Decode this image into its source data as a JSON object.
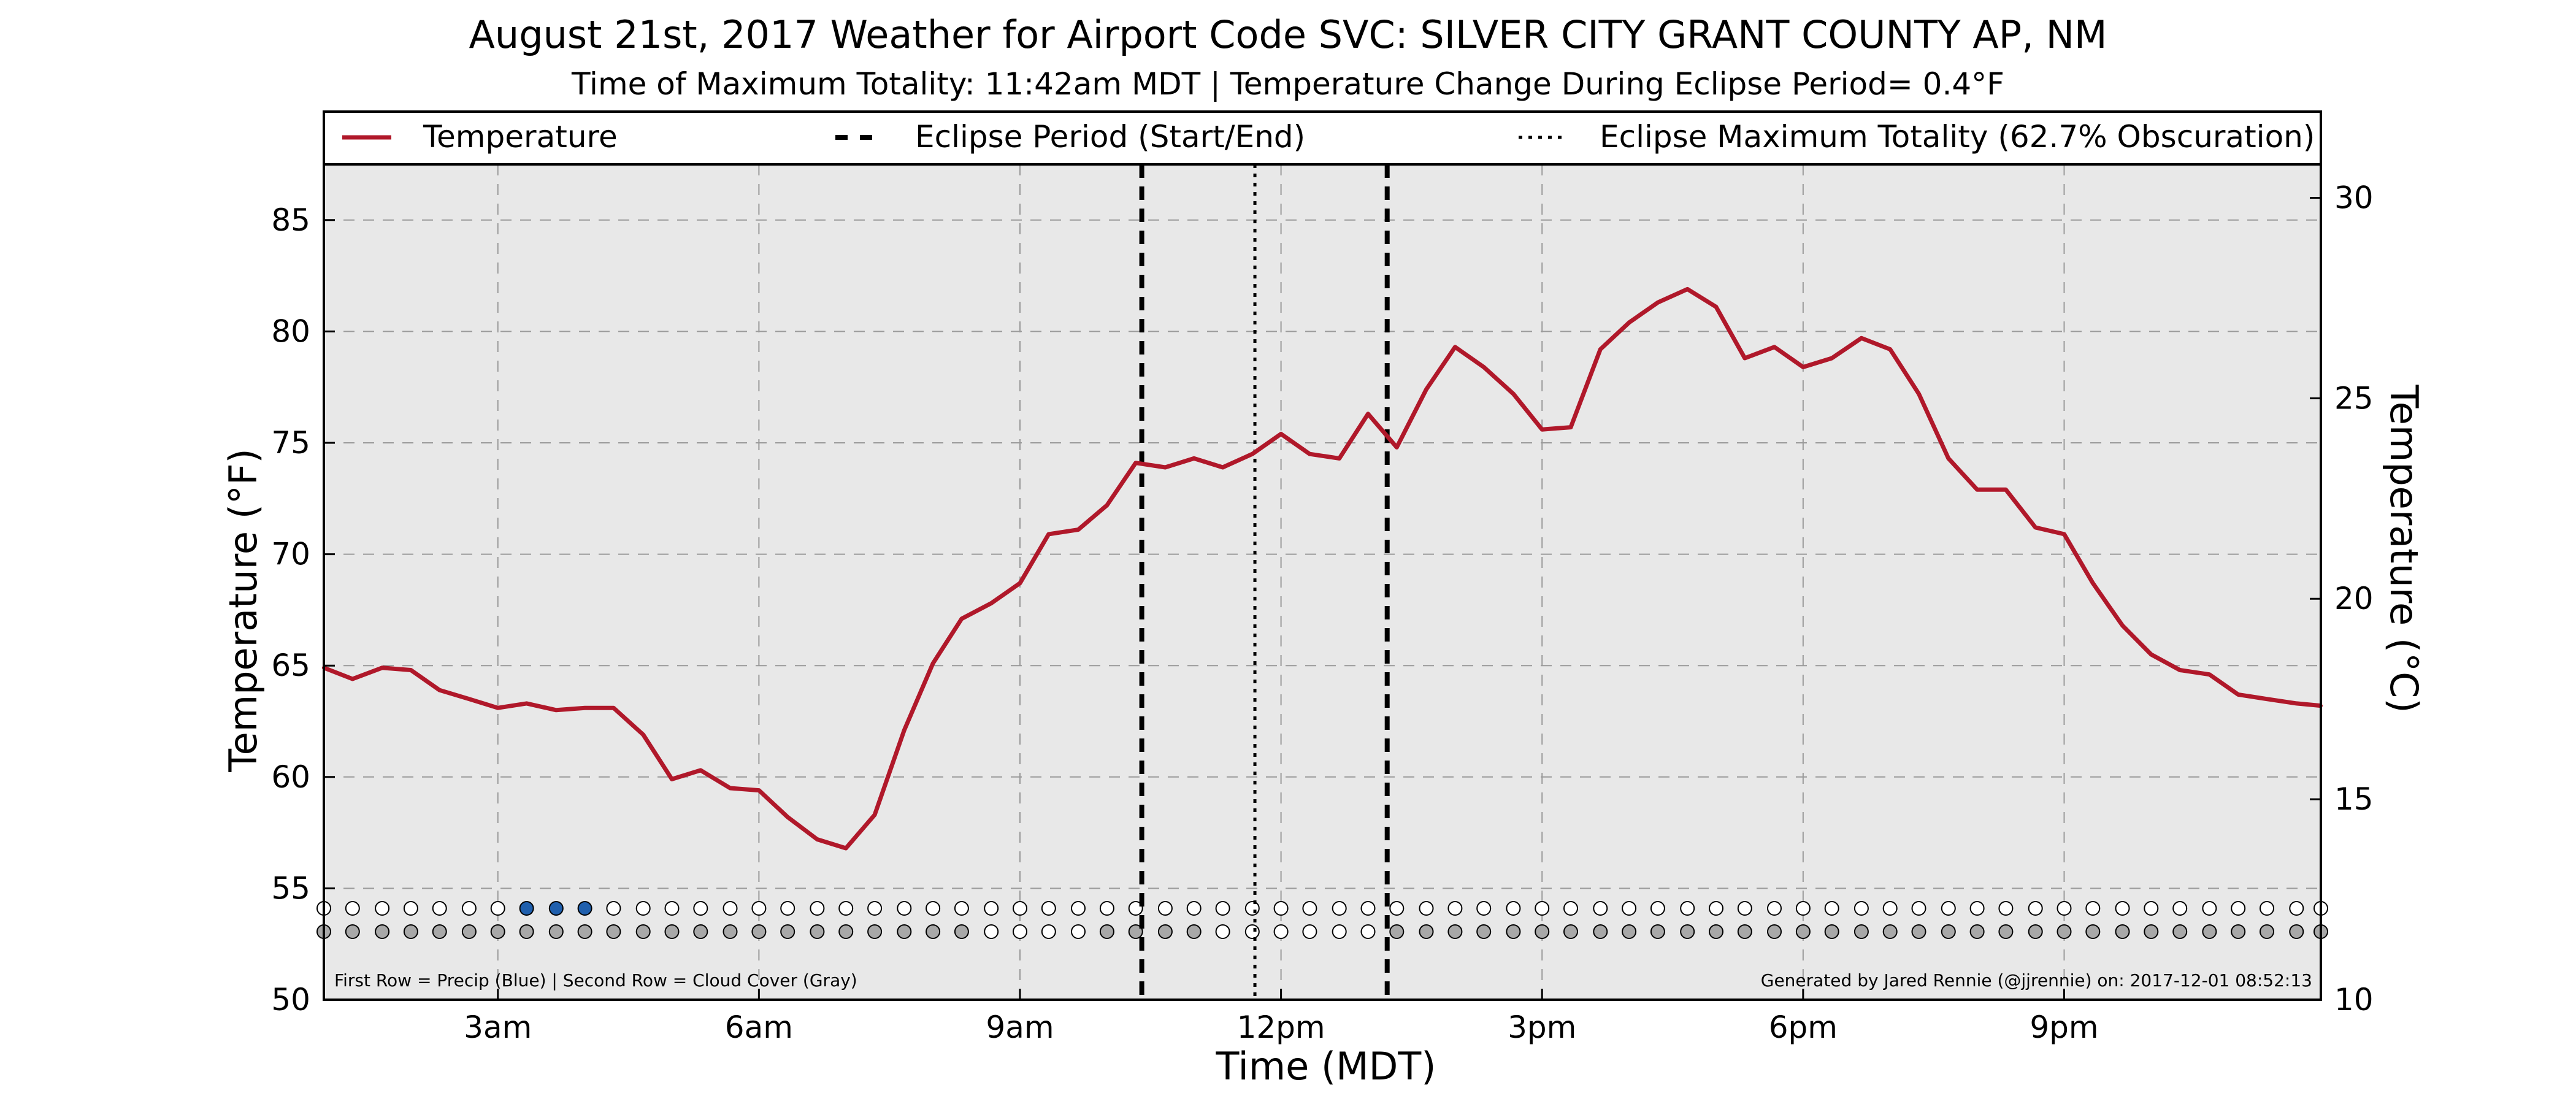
{
  "chart_data": {
    "type": "line",
    "title": "August 21st, 2017 Weather for Airport Code SVC: SILVER CITY GRANT COUNTY AP, NM",
    "subtitle": "Time of Maximum Totality: 11:42am MDT | Temperature Change During Eclipse Period= 0.4°F",
    "xlabel": "Time (MDT)",
    "ylabel_left": "Temperature (°F)",
    "ylabel_right": "Temperature (°C)",
    "ylim_f": [
      50,
      87.5
    ],
    "ylim_c": [
      10,
      30.833
    ],
    "xlim_hours": [
      1,
      23.95
    ],
    "x_ticks": [
      {
        "h": 3,
        "label": "3am"
      },
      {
        "h": 6,
        "label": "6am"
      },
      {
        "h": 9,
        "label": "9am"
      },
      {
        "h": 12,
        "label": "12pm"
      },
      {
        "h": 15,
        "label": "3pm"
      },
      {
        "h": 18,
        "label": "6pm"
      },
      {
        "h": 21,
        "label": "9pm"
      }
    ],
    "y_ticks_f": [
      50,
      55,
      60,
      65,
      70,
      75,
      80,
      85
    ],
    "y_ticks_c": [
      10,
      15,
      20,
      25,
      30
    ],
    "grid": true,
    "legend": {
      "placement": "top",
      "entries": [
        {
          "label": "Temperature",
          "style": "solid"
        },
        {
          "label": "Eclipse Period (Start/End)",
          "style": "dashed"
        },
        {
          "label": "Eclipse Maximum Totality (62.7% Obscuration)",
          "style": "dotted"
        }
      ]
    },
    "colors": {
      "line": "#b0182a",
      "plot_bg": "#e8e8e8",
      "precip": "#1f5fad",
      "cloud": "#a8a8a8",
      "empty": "#ffffff"
    },
    "eclipse_start": 10.4,
    "eclipse_end": 13.22,
    "max_totality": 11.7,
    "series": [
      {
        "name": "Temperature",
        "x": [
          1.0,
          1.33,
          1.67,
          2.0,
          2.33,
          2.67,
          3.0,
          3.33,
          3.67,
          4.0,
          4.33,
          4.67,
          5.0,
          5.33,
          5.67,
          6.0,
          6.33,
          6.67,
          7.0,
          7.33,
          7.67,
          8.0,
          8.33,
          8.67,
          9.0,
          9.33,
          9.67,
          10.0,
          10.33,
          10.67,
          11.0,
          11.33,
          11.67,
          12.0,
          12.33,
          12.67,
          13.0,
          13.33,
          13.67,
          14.0,
          14.33,
          14.67,
          15.0,
          15.33,
          15.67,
          16.0,
          16.33,
          16.67,
          17.0,
          17.33,
          17.67,
          18.0,
          18.33,
          18.67,
          19.0,
          19.33,
          19.67,
          20.0,
          20.33,
          20.67,
          21.0,
          21.33,
          21.67,
          22.0,
          22.33,
          22.67,
          23.0,
          23.33,
          23.67,
          23.95
        ],
        "y": [
          64.9,
          64.4,
          64.9,
          64.8,
          63.9,
          63.5,
          63.1,
          63.3,
          63.0,
          63.1,
          63.1,
          61.9,
          59.9,
          60.3,
          59.5,
          59.4,
          58.2,
          57.2,
          56.8,
          58.3,
          62.1,
          65.1,
          67.1,
          67.8,
          68.7,
          70.9,
          71.1,
          72.2,
          74.1,
          73.9,
          74.3,
          73.9,
          74.5,
          75.4,
          74.5,
          74.3,
          76.3,
          74.8,
          77.4,
          79.3,
          78.4,
          77.2,
          75.6,
          75.7,
          79.2,
          80.4,
          81.3,
          81.9,
          81.1,
          78.8,
          79.3,
          78.4,
          78.8,
          79.7,
          79.2,
          77.2,
          74.3,
          72.9,
          72.9,
          71.2,
          70.9,
          68.7,
          66.8,
          65.5,
          64.8,
          64.6,
          63.7,
          63.5,
          63.3,
          63.2
        ]
      }
    ],
    "precip_row": "0000000111000000000000000000000000000000000000000000000000000000000000",
    "cloud_row": "1111111111111111111111100001111000000111111111111111111111111111111111",
    "row_note": "First Row = Precip (Blue) | Second Row = Cloud Cover (Gray)",
    "credit": "Generated by Jared Rennie (@jjrennie) on: 2017-12-01 08:52:13"
  }
}
